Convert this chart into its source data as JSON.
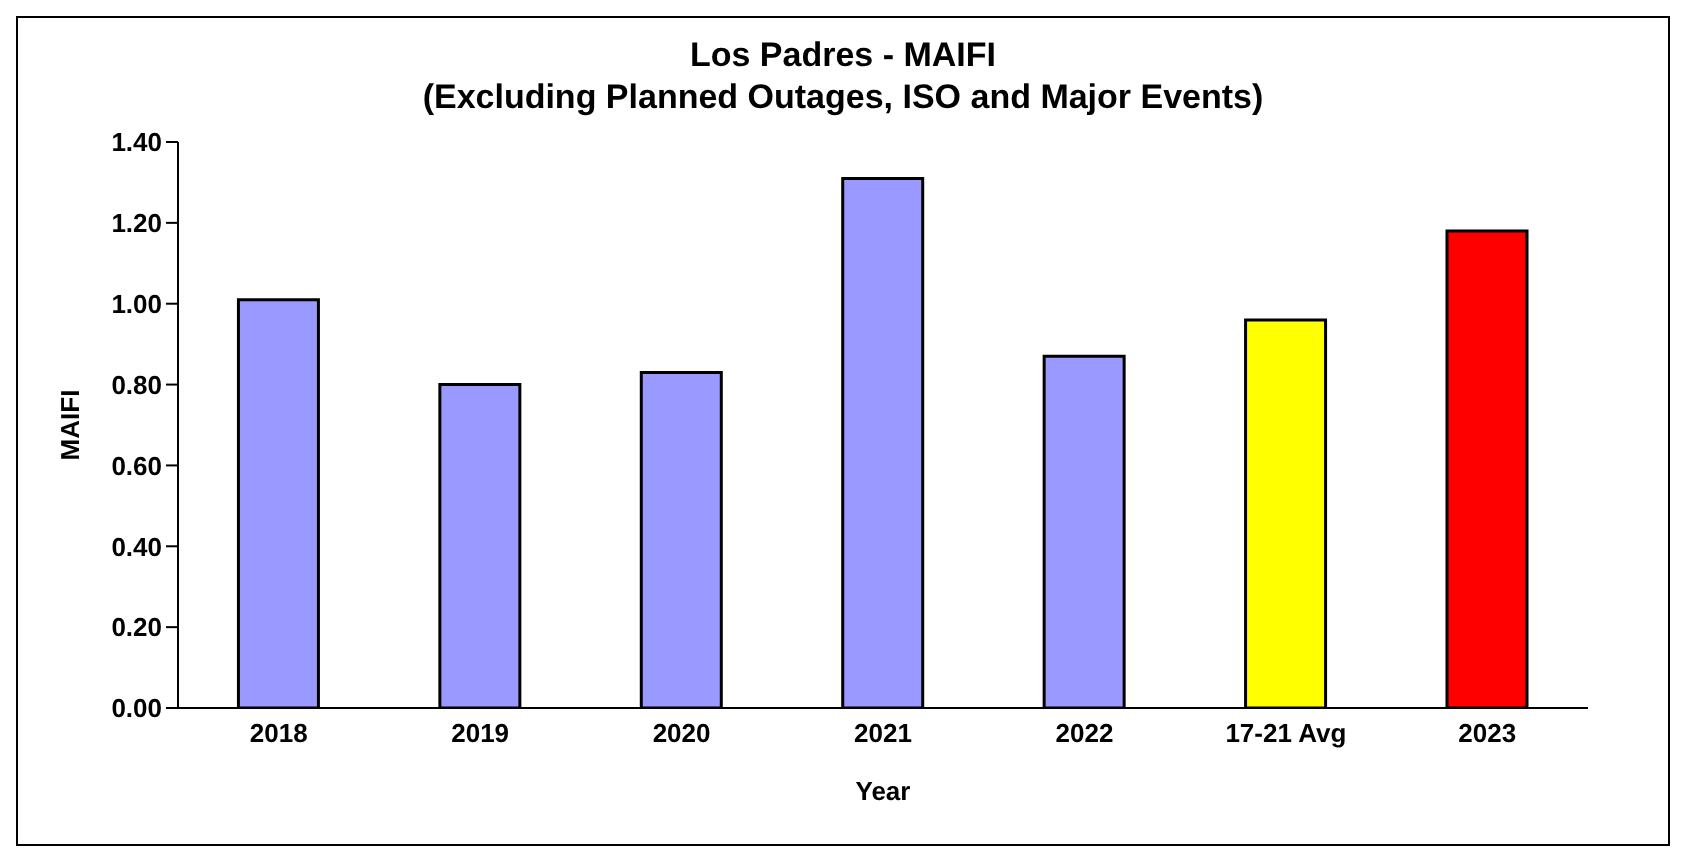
{
  "chart_data": {
    "type": "bar",
    "title": "Los Padres - MAIFI\n(Excluding Planned Outages, ISO and Major Events)",
    "xlabel": "Year",
    "ylabel": "MAIFI",
    "categories": [
      "2018",
      "2019",
      "2020",
      "2021",
      "2022",
      "17-21 Avg",
      "2023"
    ],
    "values": [
      1.01,
      0.8,
      0.83,
      1.31,
      0.87,
      0.96,
      1.18
    ],
    "colors": [
      "#9999ff",
      "#9999ff",
      "#9999ff",
      "#9999ff",
      "#9999ff",
      "#ffff00",
      "#ff0000"
    ],
    "ylim": [
      0,
      1.4
    ],
    "yticks": [
      {
        "value": 0,
        "label": "0.00"
      },
      {
        "value": 0.2,
        "label": "0.20"
      },
      {
        "value": 0.4,
        "label": "0.40"
      },
      {
        "value": 0.6,
        "label": "0.60"
      },
      {
        "value": 0.8,
        "label": "0.80"
      },
      {
        "value": 1,
        "label": "1.00"
      },
      {
        "value": 1.2,
        "label": "1.20"
      },
      {
        "value": 1.4,
        "label": "1.40"
      }
    ],
    "tick_labels": true
  }
}
